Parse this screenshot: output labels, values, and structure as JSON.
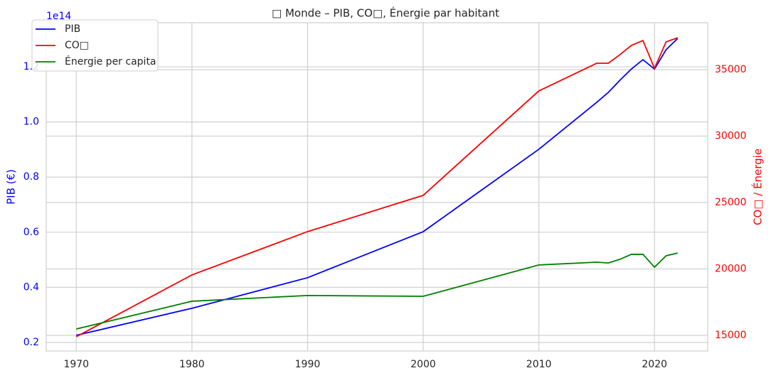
{
  "chart_data": {
    "type": "line",
    "title": "□ Monde – PIB, CO□, Énergie par habitant",
    "ylabel": "PIB (€)",
    "y2label": "CO□ / Énergie",
    "y_offset_label": "1e14",
    "x": [
      1970,
      1980,
      1990,
      2000,
      2010,
      2015,
      2016,
      2017,
      2018,
      2019,
      2020,
      2021,
      2022
    ],
    "series": [
      {
        "name": "PIB",
        "color": "#0000ff",
        "axis": "y",
        "values": [
          0.226,
          0.324,
          0.435,
          0.602,
          0.901,
          1.071,
          1.107,
          1.151,
          1.192,
          1.226,
          1.192,
          1.262,
          1.303
        ]
      },
      {
        "name": "CO□",
        "color": "#ff0000",
        "axis": "y2",
        "values": [
          14900,
          19550,
          22810,
          25540,
          33400,
          35480,
          35480,
          36120,
          36820,
          37190,
          35100,
          37090,
          37400
        ]
      },
      {
        "name": "Énergie per capita",
        "color": "#008000",
        "axis": "y2",
        "values": [
          15480,
          17570,
          18000,
          17940,
          20300,
          20510,
          20450,
          20720,
          21100,
          21100,
          20130,
          20990,
          21200
        ]
      }
    ],
    "xlim": [
      1967.4,
      2024.6
    ],
    "xticks": [
      1970,
      1980,
      1990,
      2000,
      2010,
      2020
    ],
    "ylim": [
      0.169,
      1.36
    ],
    "yticks": [
      0.2,
      0.4,
      0.6,
      0.8,
      {
        "value": 1.0,
        "label": "1.0"
      },
      1.2
    ],
    "y2lim": [
      13824,
      38529
    ],
    "y2ticks": [
      15000,
      20000,
      25000,
      30000,
      35000
    ],
    "ycolor": "#0000ff",
    "y2color": "#ff0000",
    "grid": true,
    "legend": "upper left"
  }
}
